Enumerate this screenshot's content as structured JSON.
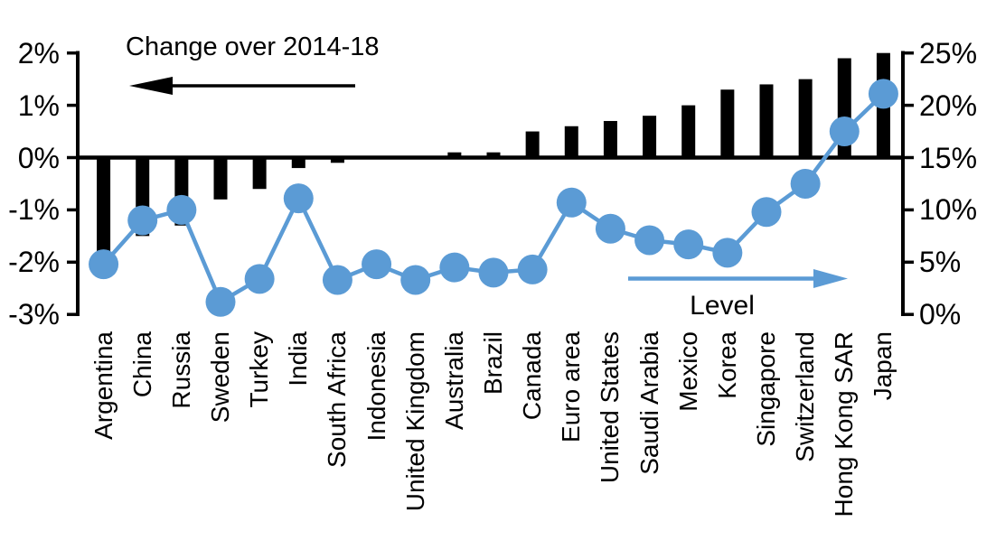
{
  "chart_data": {
    "type": "combo-bar-line",
    "categories": [
      "Argentina",
      "China",
      "Russia",
      "Sweden",
      "Turkey",
      "India",
      "South Africa",
      "Indonesia",
      "United Kingdom",
      "Australia",
      "Brazil",
      "Canada",
      "Euro area",
      "United States",
      "Saudi Arabia",
      "Mexico",
      "Korea",
      "Singapore",
      "Switzerland",
      "Hong Kong SAR",
      "Japan"
    ],
    "series": [
      {
        "name": "Change over 2014-18",
        "type": "bar",
        "axis": "left",
        "unit": "%",
        "color": "#000000",
        "values": [
          -1.9,
          -1.5,
          -1.3,
          -0.8,
          -0.6,
          -0.2,
          -0.1,
          0.0,
          0.0,
          0.1,
          0.1,
          0.5,
          0.6,
          0.7,
          0.8,
          1.0,
          1.3,
          1.4,
          1.5,
          1.9,
          2.0
        ]
      },
      {
        "name": "Level",
        "type": "line",
        "axis": "right",
        "unit": "%",
        "color": "#5B9BD5",
        "values": [
          4.8,
          9.0,
          10.0,
          1.2,
          3.4,
          11.1,
          3.3,
          4.8,
          3.3,
          4.5,
          4.0,
          4.3,
          10.7,
          8.2,
          7.1,
          6.7,
          5.9,
          9.8,
          12.5,
          17.5,
          21.1
        ]
      }
    ],
    "left_axis": {
      "range": [
        -3,
        2
      ],
      "tick_values": [
        2,
        1,
        0,
        -1,
        -2,
        -3
      ],
      "tick_labels": [
        "2%",
        "1%",
        "0%",
        "-1%",
        "-2%",
        "-3%"
      ]
    },
    "right_axis": {
      "range": [
        0,
        25
      ],
      "tick_values": [
        25,
        20,
        15,
        10,
        5,
        0
      ],
      "tick_labels": [
        "25%",
        "20%",
        "15%",
        "10%",
        "5%",
        "0%"
      ]
    },
    "annotations": {
      "bar_series_label": "Change over 2014-18",
      "line_series_label": "Level",
      "bar_arrow_direction": "left",
      "line_arrow_direction": "right"
    },
    "grid": false,
    "legend_position": "in-plot-annotations"
  },
  "colors": {
    "bar": "#000000",
    "line": "#5B9BD5",
    "background": "#FFFFFF",
    "text": "#000000"
  }
}
